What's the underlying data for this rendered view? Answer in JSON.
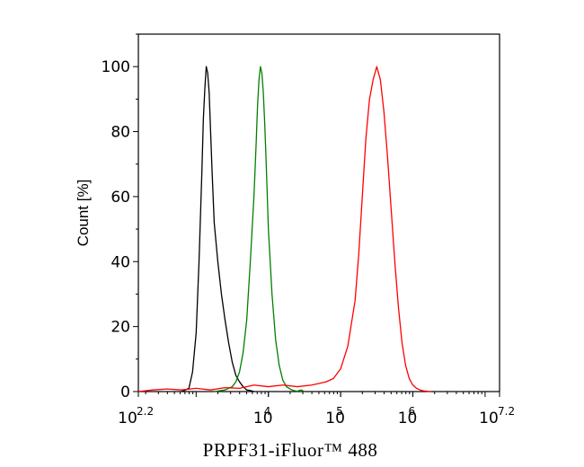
{
  "chart_data": {
    "type": "line",
    "title": "",
    "xlabel": "PRPF31-iFluor™ 488",
    "ylabel": "Count [%]",
    "x_scale": "log10",
    "xlim": [
      158.49,
      15848932
    ],
    "ylim": [
      0,
      110
    ],
    "grid": false,
    "x_ticks": [
      {
        "value": 158.49,
        "base": "10",
        "exp": "2.2"
      },
      {
        "value": 10000,
        "base": "10",
        "exp": "4"
      },
      {
        "value": 100000,
        "base": "10",
        "exp": "5"
      },
      {
        "value": 1000000,
        "base": "10",
        "exp": "6"
      },
      {
        "value": 15848932,
        "base": "10",
        "exp": "7.2"
      }
    ],
    "y_ticks": [
      {
        "value": 0,
        "label": "0"
      },
      {
        "value": 20,
        "label": "20"
      },
      {
        "value": 40,
        "label": "40"
      },
      {
        "value": 60,
        "label": "60"
      },
      {
        "value": 80,
        "label": "80"
      },
      {
        "value": 100,
        "label": "100"
      }
    ],
    "series": [
      {
        "color": "#000000",
        "x": [
          631,
          794,
          891,
          1000,
          1096,
          1202,
          1259,
          1318,
          1380,
          1445,
          1514,
          1585,
          1660,
          1778,
          1995,
          2239,
          2512,
          2818,
          3162,
          3548,
          3981,
          4467,
          5012,
          5623,
          6310
        ],
        "y": [
          0,
          1,
          6,
          18,
          40,
          68,
          84,
          93,
          100,
          98,
          92,
          80,
          68,
          52,
          40,
          30,
          22,
          15,
          9,
          5,
          3,
          1.5,
          0.5,
          0.3,
          0
        ]
      },
      {
        "color": "#008000",
        "x": [
          1778,
          2512,
          3162,
          3548,
          3981,
          4467,
          5012,
          5623,
          6310,
          6761,
          7079,
          7413,
          7762,
          8128,
          8511,
          8913,
          9333,
          10000,
          11220,
          12589,
          14125,
          15849,
          17783,
          19953,
          22387,
          25119,
          28184,
          31623
        ],
        "y": [
          0,
          0.5,
          1.5,
          3,
          6,
          12,
          22,
          40,
          60,
          76,
          88,
          96,
          100,
          98,
          92,
          82,
          70,
          50,
          30,
          16,
          8,
          3.5,
          1.5,
          0.8,
          0.3,
          0.1,
          0.5,
          0
        ]
      },
      {
        "color": "#ff0000",
        "x": [
          158.49,
          251,
          398,
          631,
          1000,
          1585,
          2512,
          3981,
          6310,
          10000,
          15849,
          25119,
          39811,
          50119,
          63096,
          79433,
          100000,
          125893,
          158489,
          177828,
          199526,
          223872,
          251189,
          281838,
          316228,
          354813,
          398107,
          446684,
          501187,
          562341,
          630957,
          707946,
          794328,
          891251,
          1000000,
          1122018,
          1258925,
          1412538,
          1584893,
          1778279
        ],
        "y": [
          0,
          0.5,
          0.8,
          0.5,
          1,
          0.5,
          1.2,
          1,
          2,
          1.5,
          2,
          1.5,
          2,
          2.5,
          3,
          4,
          7,
          14,
          28,
          42,
          60,
          78,
          90,
          96,
          100,
          96,
          86,
          72,
          56,
          40,
          26,
          15,
          8,
          4,
          2,
          1,
          0.5,
          0.2,
          0.1,
          0
        ]
      }
    ]
  }
}
